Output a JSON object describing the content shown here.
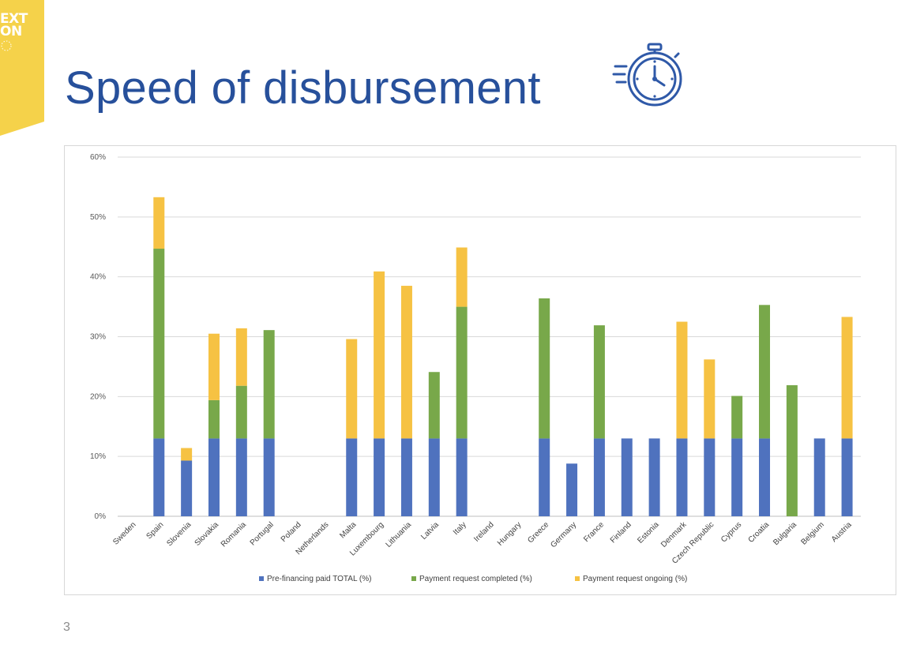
{
  "header": {
    "logo_text": "EXT\nON",
    "title": "Speed of disbursement",
    "icon": "stopwatch-icon"
  },
  "page_number": "3",
  "colors": {
    "accent_yellow": "#f5d24a",
    "title_blue": "#27509b",
    "icon_blue": "#2f59a8",
    "series_blue": "#4f72be",
    "series_green": "#78a84a",
    "series_yellow": "#f6c243"
  },
  "chart_data": {
    "type": "bar",
    "stacked": true,
    "categories": [
      "Sweden",
      "Spain",
      "Slovenia",
      "Slovakia",
      "Romania",
      "Portugal",
      "Poland",
      "Netherlands",
      "Malta",
      "Luxembourg",
      "Lithuania",
      "Latvia",
      "Italy",
      "Ireland",
      "Hungary",
      "Greece",
      "Germany",
      "France",
      "Finland",
      "Estonia",
      "Denmark",
      "Czech Republic",
      "Cyprus",
      "Croatia",
      "Bulgaria",
      "Belgium",
      "Austria"
    ],
    "series": [
      {
        "name": "Pre-financing paid TOTAL (%)",
        "color": "#4f72be",
        "values": [
          0,
          13,
          9.3,
          13,
          13,
          13,
          0,
          0,
          13,
          13,
          13,
          13,
          13,
          0,
          0,
          13,
          8.8,
          13,
          13,
          13,
          13,
          13,
          13,
          13,
          0,
          13,
          13
        ]
      },
      {
        "name": "Payment request completed (%)",
        "color": "#78a84a",
        "values": [
          0,
          31.7,
          0,
          6.4,
          8.8,
          18.1,
          0,
          0,
          0,
          0,
          0,
          11.1,
          22,
          0,
          0,
          23.4,
          0,
          18.9,
          0,
          0,
          0,
          0,
          7.1,
          22.3,
          21.9,
          0,
          0
        ]
      },
      {
        "name": "Payment request ongoing (%)",
        "color": "#f6c243",
        "values": [
          0,
          8.6,
          2.1,
          11.1,
          9.6,
          0,
          0,
          0,
          16.6,
          27.9,
          25.5,
          0,
          9.9,
          0,
          0,
          0,
          0,
          0,
          0,
          0,
          19.5,
          13.2,
          0,
          0,
          0,
          0,
          20.3
        ]
      }
    ],
    "yticks": [
      "0%",
      "10%",
      "20%",
      "30%",
      "40%",
      "50%",
      "60%"
    ],
    "ylim": [
      0,
      60
    ],
    "grid": true,
    "legend_position": "bottom",
    "title": "",
    "xlabel": "",
    "ylabel": ""
  }
}
